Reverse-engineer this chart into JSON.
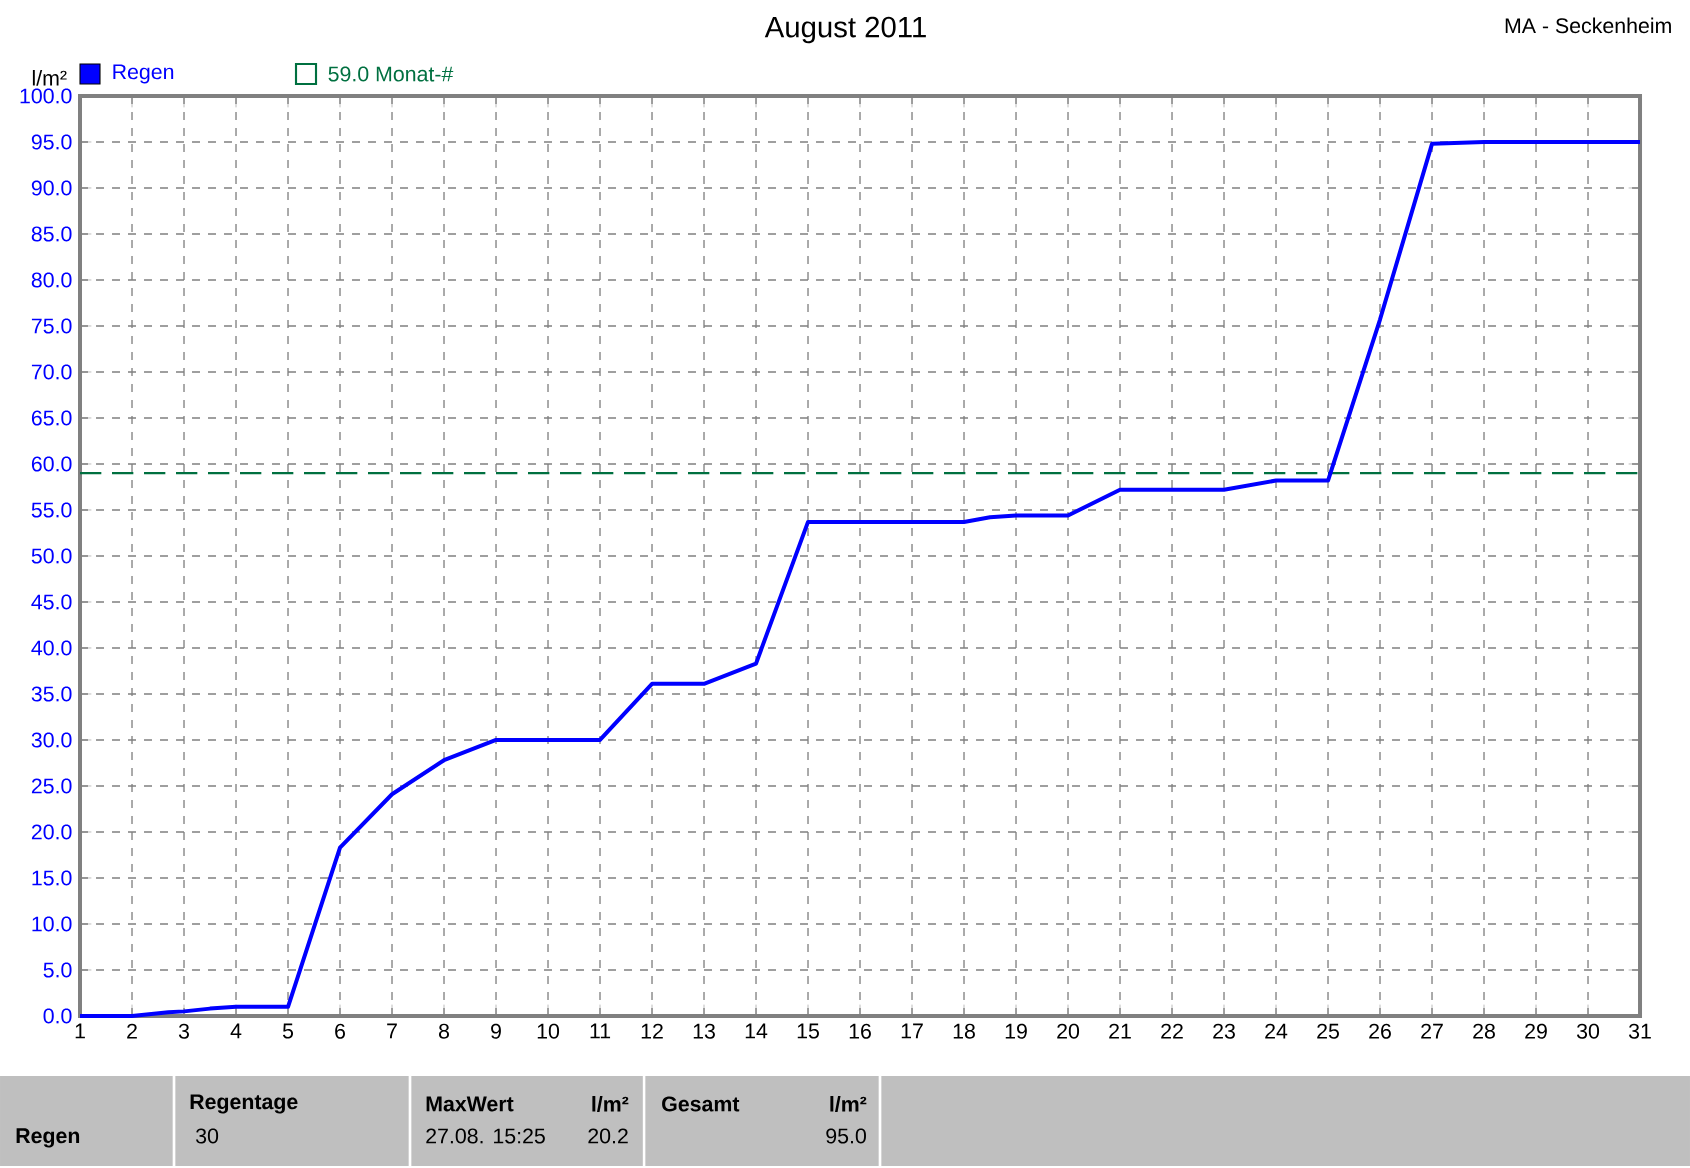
{
  "chart_data": {
    "type": "line",
    "title": "August 2011",
    "subtitle": "MA - Seckenheim",
    "ylabel": "l/m²",
    "x": [
      1,
      2,
      2.7,
      3,
      3.5,
      4,
      5,
      6,
      7,
      8,
      9,
      10,
      11,
      12,
      13,
      14,
      15,
      16,
      17,
      18,
      18.5,
      19,
      20,
      21,
      22,
      23,
      24,
      25,
      26,
      27,
      28,
      29,
      30,
      31
    ],
    "series": [
      {
        "name": "Regen",
        "color": "#0000ff",
        "line_style": "solid",
        "values": [
          0,
          0,
          0.4,
          0.5,
          0.8,
          1,
          1,
          18.3,
          24.1,
          27.8,
          30,
          30,
          30,
          36.1,
          36.1,
          38.3,
          53.7,
          53.7,
          53.7,
          53.7,
          54.2,
          54.4,
          54.4,
          57.2,
          57.2,
          57.2,
          58.2,
          58.2,
          75.7,
          94.8,
          95,
          95,
          95,
          95
        ]
      }
    ],
    "xlim": [
      1,
      31
    ],
    "xticks": [
      1,
      2,
      3,
      4,
      5,
      6,
      7,
      8,
      9,
      10,
      11,
      12,
      13,
      14,
      15,
      16,
      17,
      18,
      19,
      20,
      21,
      22,
      23,
      24,
      25,
      26,
      27,
      28,
      29,
      30,
      31
    ],
    "ylim": [
      0,
      100
    ],
    "yticks": [
      {
        "value": 0,
        "label": "0.0"
      },
      {
        "value": 5,
        "label": "5.0"
      },
      {
        "value": 10,
        "label": "10.0"
      },
      {
        "value": 15,
        "label": "15.0"
      },
      {
        "value": 20,
        "label": "20.0"
      },
      {
        "value": 25,
        "label": "25.0"
      },
      {
        "value": 30,
        "label": "30.0"
      },
      {
        "value": 35,
        "label": "35.0"
      },
      {
        "value": 40,
        "label": "40.0"
      },
      {
        "value": 45,
        "label": "45.0"
      },
      {
        "value": 50,
        "label": "50.0"
      },
      {
        "value": 55,
        "label": "55.0"
      },
      {
        "value": 60,
        "label": "60.0"
      },
      {
        "value": 65,
        "label": "65.0"
      },
      {
        "value": 70,
        "label": "70.0"
      },
      {
        "value": 75,
        "label": "75.0"
      },
      {
        "value": 80,
        "label": "80.0"
      },
      {
        "value": 85,
        "label": "85.0"
      },
      {
        "value": 90,
        "label": "90.0"
      },
      {
        "value": 95,
        "label": "95.0"
      },
      {
        "value": 100,
        "label": "100.0"
      }
    ],
    "ref_lines": [
      {
        "axis": "y",
        "value": 59,
        "label": "59.0 Monat-#",
        "color": "#007040",
        "line_style": "dashed"
      }
    ],
    "grid": true,
    "legend": "top left",
    "annotations": [
      "Regen",
      "Regentage",
      "30",
      "MaxWert",
      "l/m²",
      "27.08.  15:25",
      "20.2",
      "Gesamt",
      "l/m²",
      "95.0"
    ]
  }
}
